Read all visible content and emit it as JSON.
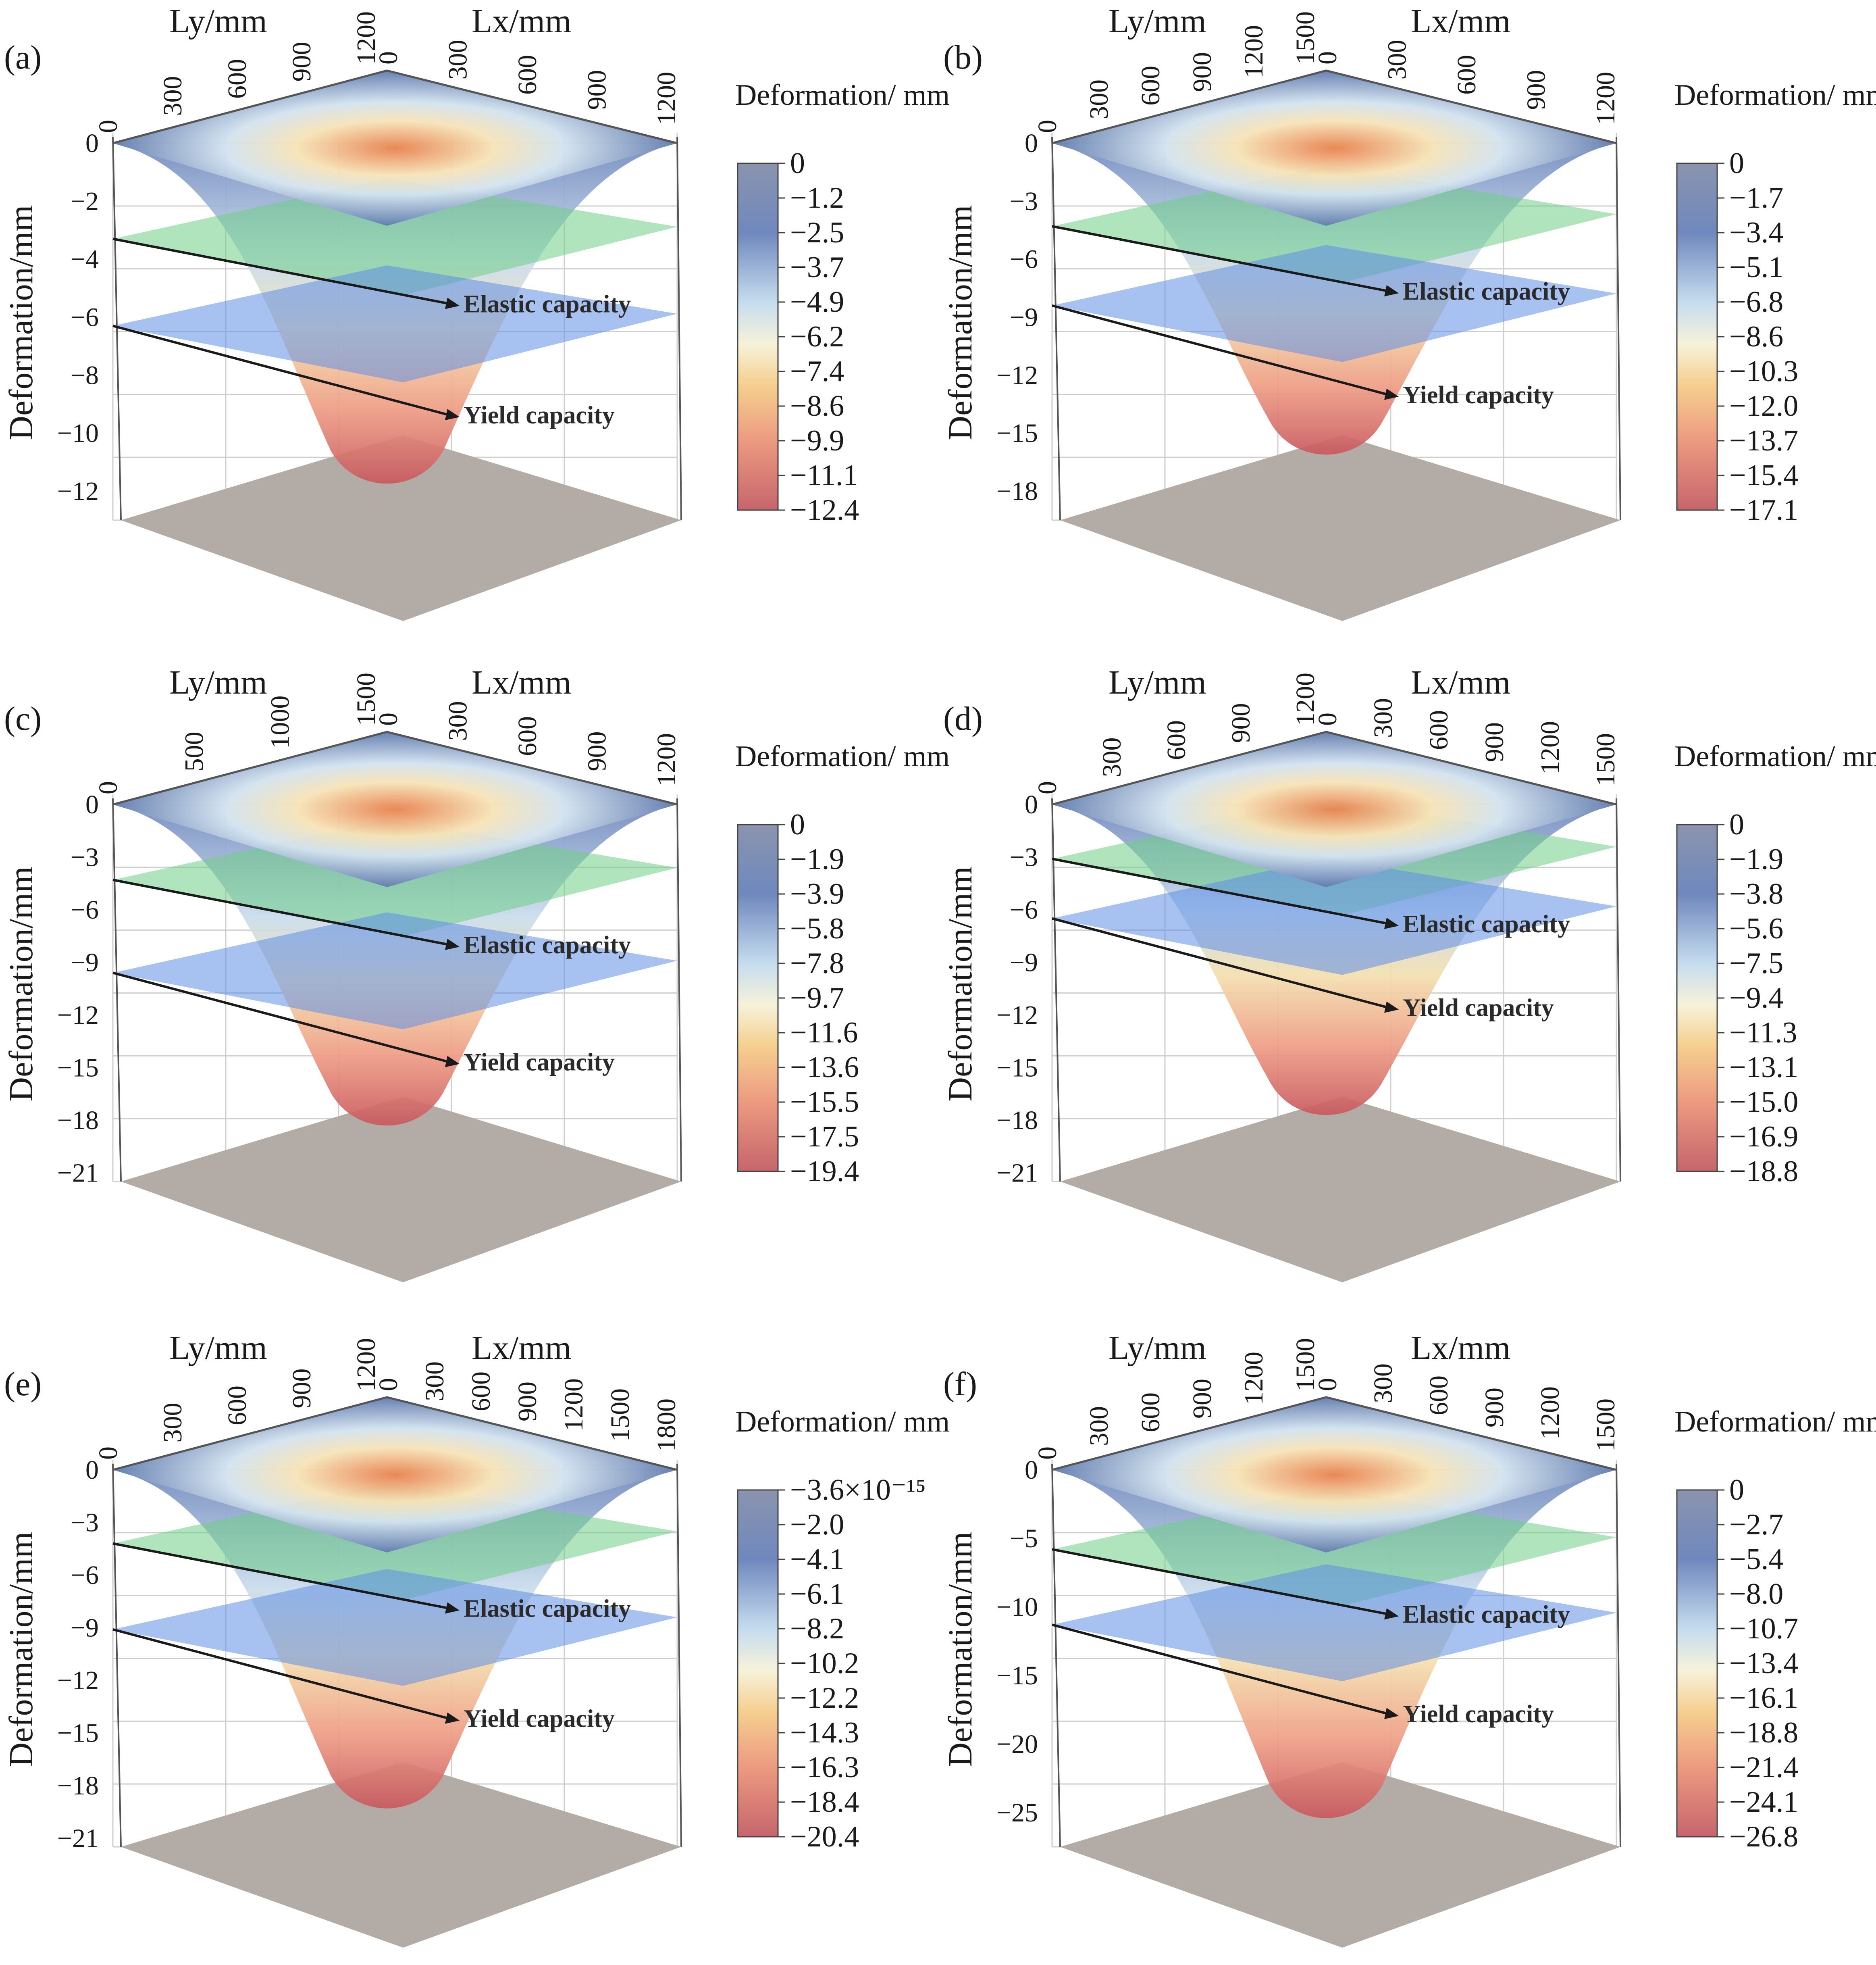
{
  "figure": {
    "panels": [
      {
        "id": "a",
        "panel_label": "(a)",
        "chart_data": {
          "type": "surface3d",
          "ly_label": "Ly/mm",
          "lx_label": "Lx/mm",
          "z_label": "Deformation/mm",
          "ly_ticks": [
            "0",
            "300",
            "600",
            "900",
            "1200"
          ],
          "lx_ticks": [
            "0",
            "300",
            "600",
            "900",
            "1200"
          ],
          "z_ticks": [
            "0",
            "-2",
            "-4",
            "-6",
            "-8",
            "-10",
            "-12"
          ],
          "z_range": [
            -13,
            0
          ],
          "min_deformation": -12.4,
          "colorbar_title": "Deformation/ mm",
          "colorbar_ticks": [
            "0",
            "-1.2",
            "-2.5",
            "-3.7",
            "-4.9",
            "-6.2",
            "-7.4",
            "-8.6",
            "-9.9",
            "-11.1",
            "-12.4"
          ],
          "planes": [
            {
              "name": "Elastic capacity",
              "z": -3.3,
              "color": "#6fce86"
            },
            {
              "name": "Yield capacity",
              "z": -6.3,
              "color": "#5f8ee6"
            }
          ]
        }
      },
      {
        "id": "b",
        "panel_label": "(b)",
        "chart_data": {
          "type": "surface3d",
          "ly_label": "Ly/mm",
          "lx_label": "Lx/mm",
          "z_label": "Deformation/mm",
          "ly_ticks": [
            "0",
            "300",
            "600",
            "900",
            "1200",
            "1500"
          ],
          "lx_ticks": [
            "0",
            "300",
            "600",
            "900",
            "1200"
          ],
          "z_ticks": [
            "0",
            "-3",
            "-6",
            "-9",
            "-12",
            "-15",
            "-18"
          ],
          "z_range": [
            -19.5,
            0
          ],
          "min_deformation": -17.1,
          "colorbar_title": "Deformation/ mm",
          "colorbar_ticks": [
            "0",
            "-1.7",
            "-3.4",
            "-5.1",
            "-6.8",
            "-8.6",
            "-10.3",
            "-12.0",
            "-13.7",
            "-15.4",
            "-17.1"
          ],
          "planes": [
            {
              "name": "Elastic capacity",
              "z": -4.3,
              "color": "#6fce86"
            },
            {
              "name": "Yield capacity",
              "z": -8.4,
              "color": "#5f8ee6"
            }
          ]
        }
      },
      {
        "id": "c",
        "panel_label": "(c)",
        "chart_data": {
          "type": "surface3d",
          "ly_label": "Ly/mm",
          "lx_label": "Lx/mm",
          "z_label": "Deformation/mm",
          "ly_ticks": [
            "0",
            "500",
            "1000",
            "1500"
          ],
          "lx_ticks": [
            "0",
            "300",
            "600",
            "900",
            "1200"
          ],
          "z_ticks": [
            "0",
            "-3",
            "-6",
            "-9",
            "-12",
            "-15",
            "-18",
            "-21"
          ],
          "z_range": [
            -21.5,
            0
          ],
          "min_deformation": -19.4,
          "colorbar_title": "Deformation/ mm",
          "colorbar_ticks": [
            "0",
            "-1.9",
            "-3.9",
            "-5.8",
            "-7.8",
            "-9.7",
            "-11.6",
            "-13.6",
            "-15.5",
            "-17.5",
            "-19.4"
          ],
          "planes": [
            {
              "name": "Elastic capacity",
              "z": -4.3,
              "color": "#6fce86"
            },
            {
              "name": "Yield capacity",
              "z": -9.6,
              "color": "#5f8ee6"
            }
          ]
        }
      },
      {
        "id": "d",
        "panel_label": "(d)",
        "chart_data": {
          "type": "surface3d",
          "ly_label": "Ly/mm",
          "lx_label": "Lx/mm",
          "z_label": "Deformation/mm",
          "ly_ticks": [
            "0",
            "300",
            "600",
            "900",
            "1200"
          ],
          "lx_ticks": [
            "0",
            "300",
            "600",
            "900",
            "1200",
            "1500"
          ],
          "z_ticks": [
            "0",
            "-3",
            "-6",
            "-9",
            "-12",
            "-15",
            "-18",
            "-21"
          ],
          "z_range": [
            -21.5,
            0
          ],
          "min_deformation": -18.8,
          "colorbar_title": "Deformation/ mm",
          "colorbar_ticks": [
            "0",
            "-1.9",
            "-3.8",
            "-5.6",
            "-7.5",
            "-9.4",
            "-11.3",
            "-13.1",
            "-15.0",
            "-16.9",
            "-18.8"
          ],
          "planes": [
            {
              "name": "Elastic capacity",
              "z": -3.1,
              "color": "#6fce86"
            },
            {
              "name": "Yield capacity",
              "z": -6.5,
              "color": "#5f8ee6"
            }
          ]
        }
      },
      {
        "id": "e",
        "panel_label": "(e)",
        "chart_data": {
          "type": "surface3d",
          "ly_label": "Ly/mm",
          "lx_label": "Lx/mm",
          "z_label": "Deformation/mm",
          "ly_ticks": [
            "0",
            "300",
            "600",
            "900",
            "1200"
          ],
          "lx_ticks": [
            "0",
            "300",
            "600",
            "900",
            "1200",
            "1500",
            "1800"
          ],
          "z_ticks": [
            "0",
            "-3",
            "-6",
            "-9",
            "-12",
            "-15",
            "-18",
            "-21"
          ],
          "z_range": [
            -21.5,
            0
          ],
          "min_deformation": -20.4,
          "colorbar_title": "Deformation/ mm",
          "colorbar_ticks": [
            "-3.6×10⁻¹⁵",
            "-2.0",
            "-4.1",
            "-6.1",
            "-8.2",
            "-10.2",
            "-12.2",
            "-14.3",
            "-16.3",
            "-18.4",
            "-20.4"
          ],
          "planes": [
            {
              "name": "Elastic capacity",
              "z": -4.2,
              "color": "#6fce86"
            },
            {
              "name": "Yield capacity",
              "z": -9.1,
              "color": "#5f8ee6"
            }
          ]
        }
      },
      {
        "id": "f",
        "panel_label": "(f)",
        "chart_data": {
          "type": "surface3d",
          "ly_label": "Ly/mm",
          "lx_label": "Lx/mm",
          "z_label": "Deformation/mm",
          "ly_ticks": [
            "0",
            "300",
            "600",
            "900",
            "1200",
            "1500"
          ],
          "lx_ticks": [
            "0",
            "300",
            "600",
            "900",
            "1200",
            "1500"
          ],
          "z_ticks": [
            "0",
            "-5",
            "-10",
            "-15",
            "-20",
            "-25"
          ],
          "z_range": [
            -27.5,
            0
          ],
          "min_deformation": -26.8,
          "colorbar_title": "Deformation/ mm",
          "colorbar_ticks": [
            "0",
            "-2.7",
            "-5.4",
            "-8.0",
            "-10.7",
            "-13.4",
            "-16.1",
            "-18.8",
            "-21.4",
            "-24.1",
            "-26.8"
          ],
          "planes": [
            {
              "name": "Elastic capacity",
              "z": -5.8,
              "color": "#6fce86"
            },
            {
              "name": "Yield capacity",
              "z": -11.3,
              "color": "#5f8ee6"
            }
          ]
        }
      }
    ]
  }
}
